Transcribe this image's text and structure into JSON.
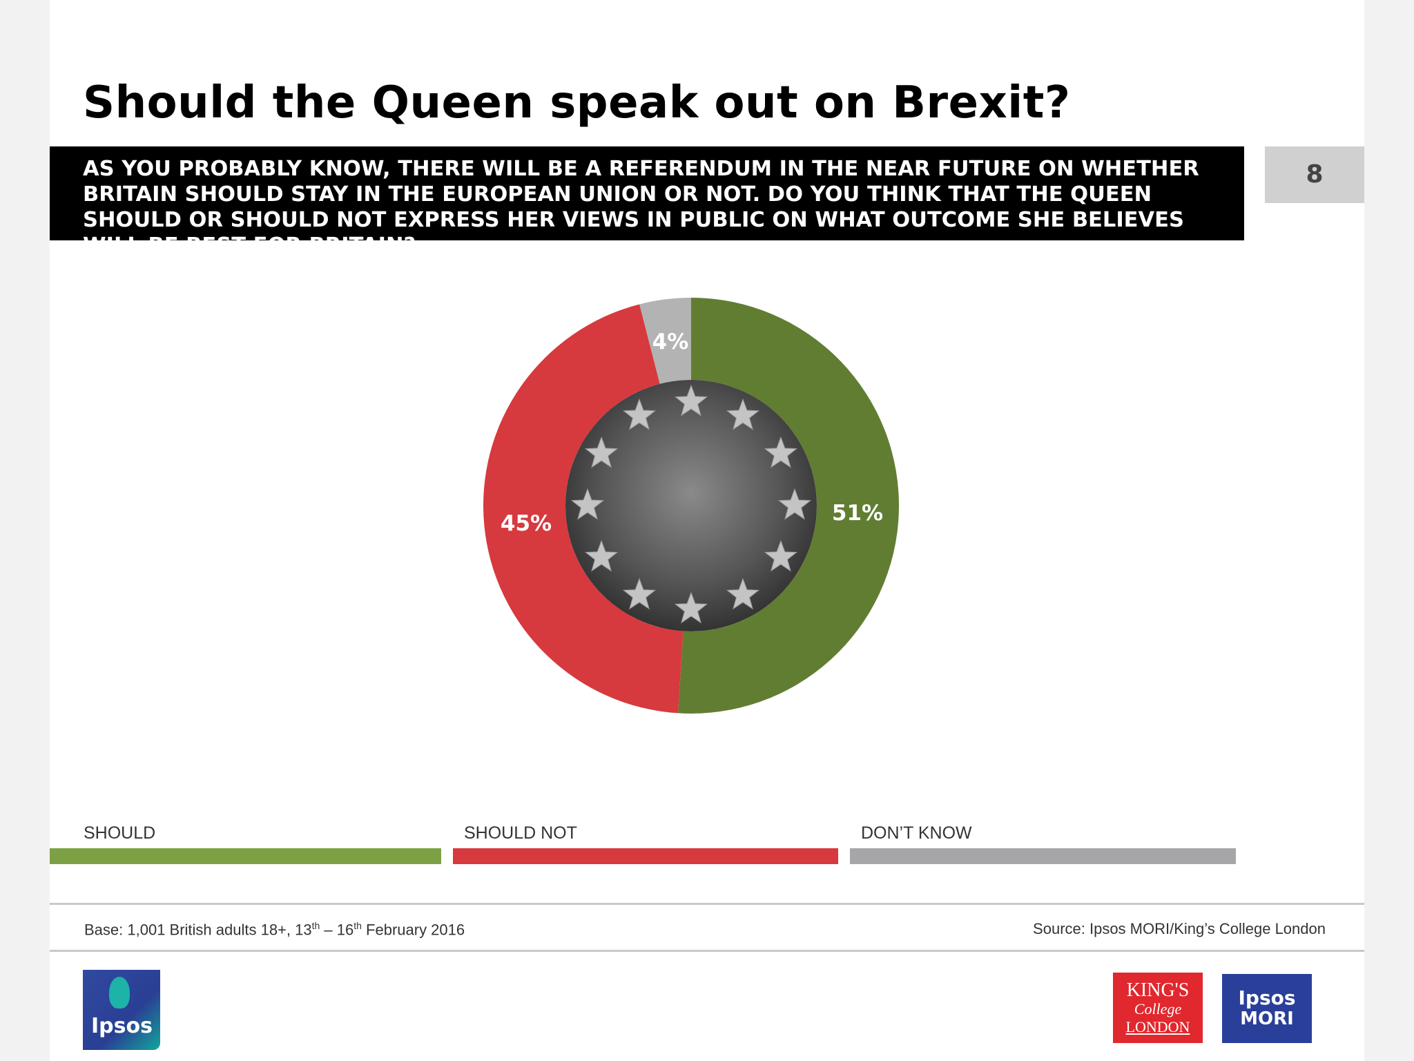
{
  "slide": {
    "title": "Should the Queen speak out on Brexit?",
    "question": "AS YOU PROBABLY KNOW, THERE WILL BE A REFERENDUM IN THE NEAR FUTURE ON WHETHER BRITAIN SHOULD STAY IN THE EUROPEAN UNION OR NOT. DO YOU THINK THAT THE QUEEN SHOULD OR SHOULD NOT EXPRESS HER VIEWS IN PUBLIC ON WHAT OUTCOME SHE BELIEVES WILL BE BEST FOR BRITAIN?",
    "page_number": "8"
  },
  "chart_data": {
    "type": "pie",
    "style": "donut",
    "slices": [
      {
        "label": "SHOULD",
        "value": 51,
        "display": "51%",
        "color": "#617d32"
      },
      {
        "label": "SHOULD NOT",
        "value": 45,
        "display": "45%",
        "color": "#d63a3e"
      },
      {
        "label": "DON’T KNOW",
        "value": 4,
        "display": "4%",
        "color": "#b3b3b3"
      }
    ],
    "center_image": "eu-flag-stars-grayscale",
    "legend_placement": "bottom"
  },
  "legend": {
    "items": [
      {
        "label": "SHOULD",
        "color": "#7ca144"
      },
      {
        "label": "SHOULD NOT",
        "color": "#d63a3e"
      },
      {
        "label": "DON’T KNOW",
        "color": "#a6a6a8"
      }
    ]
  },
  "footer": {
    "base_prefix": "Base: 1,001 British adults 18+, 13",
    "base_sup1": "th",
    "base_mid": " – 16",
    "base_sup2": "th",
    "base_suffix": "  February 2016",
    "source": "Source: Ipsos MORI/King’s College London"
  },
  "logos": {
    "ipsos": "Ipsos",
    "kings_line1": "KING'S",
    "kings_line2": "College",
    "kings_line3": "LONDON",
    "mori_line1": "Ipsos",
    "mori_line2": "MORI"
  }
}
